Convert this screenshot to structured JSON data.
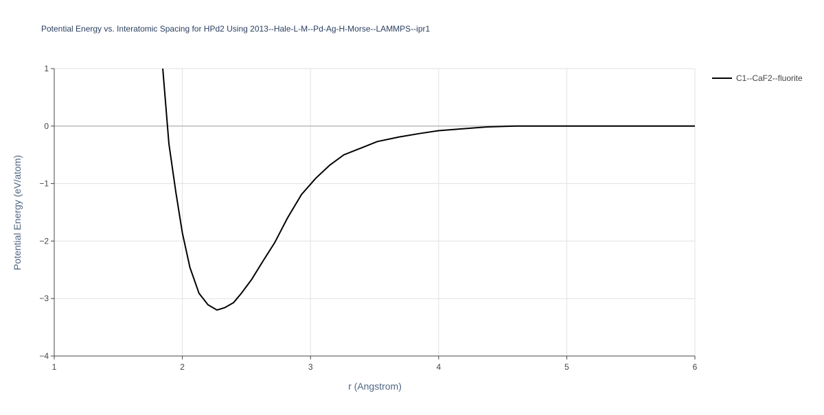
{
  "chart_data": {
    "type": "line",
    "title": "Potential Energy vs. Interatomic Spacing for HPd2 Using 2013--Hale-L-M--Pd-Ag-H-Morse--LAMMPS--ipr1",
    "x_label": "r (Angstrom)",
    "y_label": "Potential Energy (eV/atom)",
    "xlim": [
      1,
      6
    ],
    "ylim": [
      -4,
      1
    ],
    "xticks": [
      1,
      2,
      3,
      4,
      5,
      6
    ],
    "yticks": [
      {
        "value": -4,
        "label": "−4"
      },
      {
        "value": -3,
        "label": "−3"
      },
      {
        "value": -2,
        "label": "−2"
      },
      {
        "value": -1,
        "label": "−1"
      },
      0,
      1
    ],
    "grid": true,
    "legend": "right",
    "series": [
      {
        "name": "C1--CaF2--fluorite",
        "color": "#000000",
        "x": [
          1.847,
          1.895,
          1.949,
          2.0,
          2.059,
          2.13,
          2.2,
          2.27,
          2.33,
          2.4,
          2.46,
          2.54,
          2.64,
          2.72,
          2.82,
          2.93,
          3.04,
          3.15,
          3.26,
          3.42,
          3.52,
          3.69,
          3.85,
          4.0,
          4.17,
          4.38,
          4.6,
          6.0
        ],
        "values": [
          1.0,
          -0.31,
          -1.15,
          -1.86,
          -2.46,
          -2.91,
          -3.11,
          -3.2,
          -3.16,
          -3.07,
          -2.91,
          -2.67,
          -2.31,
          -2.03,
          -1.6,
          -1.19,
          -0.91,
          -0.68,
          -0.5,
          -0.36,
          -0.27,
          -0.19,
          -0.13,
          -0.08,
          -0.05,
          -0.015,
          0,
          0
        ]
      }
    ]
  }
}
